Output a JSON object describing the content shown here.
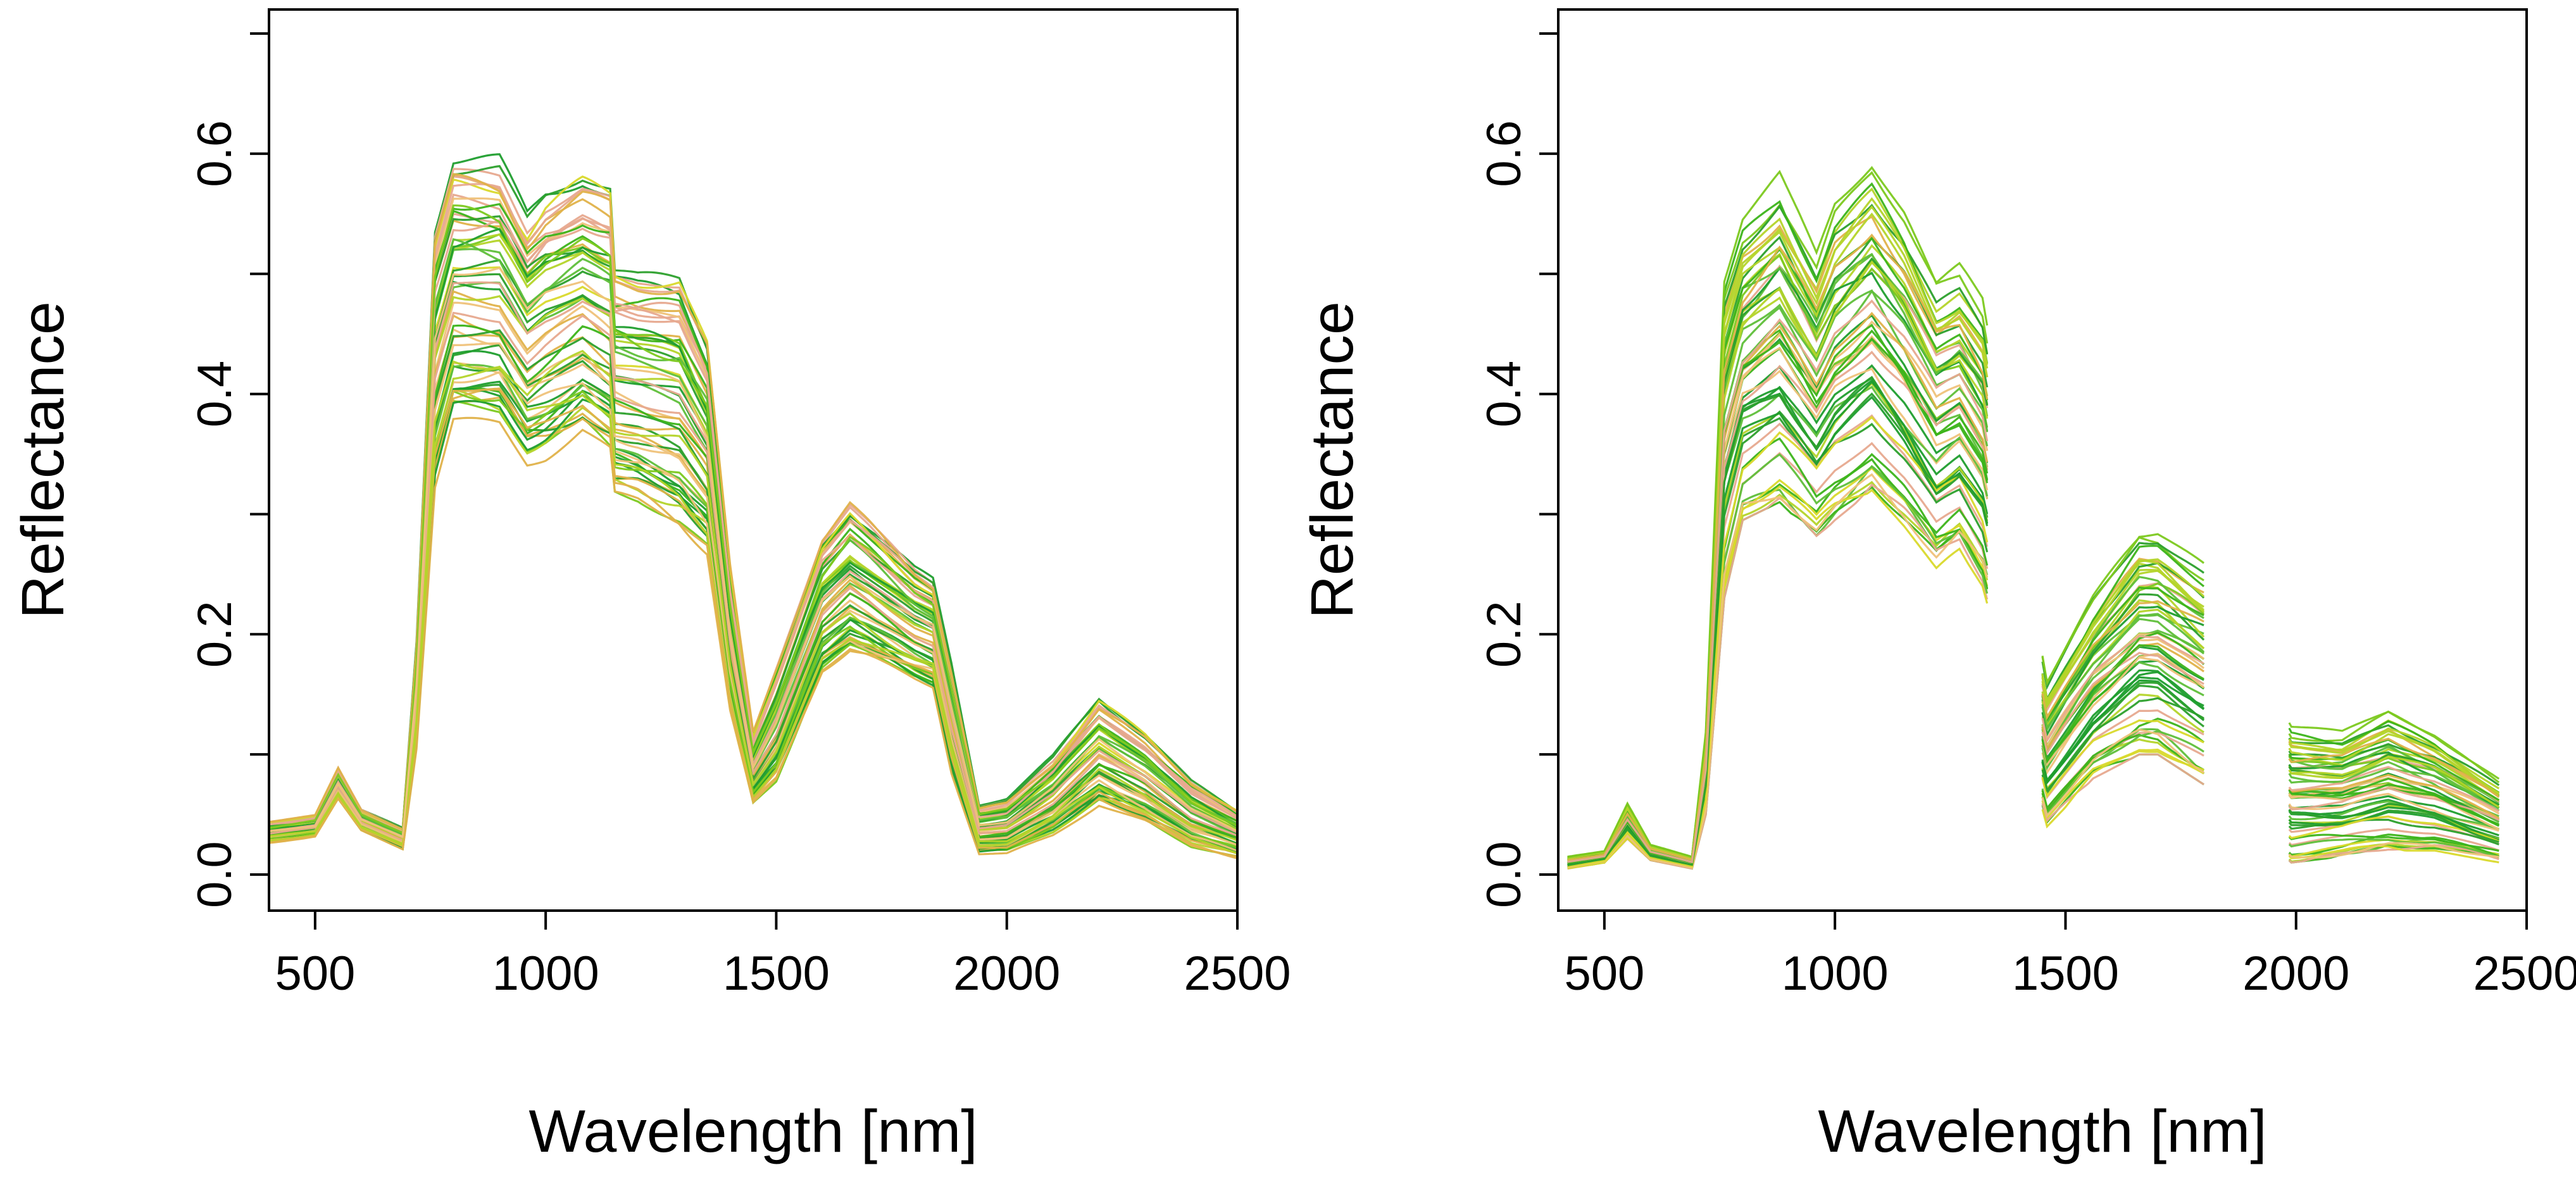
{
  "colors": {
    "series_palette": [
      "#2ca02c",
      "#3cb41a",
      "#7cc91f",
      "#b4d42a",
      "#d9d92c",
      "#e0b24a",
      "#e7a98f",
      "#efc27a",
      "#5fbf3a",
      "#1f9e2e"
    ],
    "axis": "#000000",
    "background": "#ffffff"
  },
  "chart_data": [
    {
      "type": "line",
      "title": "",
      "xlabel": "Wavelength [nm]",
      "ylabel": "Reflectance",
      "xlim": [
        400,
        2500
      ],
      "ylim": [
        -0.03,
        0.72
      ],
      "xticks": [
        500,
        1000,
        1500,
        2000,
        2500
      ],
      "xtick_labels": [
        "500",
        "1000",
        "1500",
        "2000",
        "2500"
      ],
      "yticks": [
        0.0,
        0.1,
        0.2,
        0.3,
        0.4,
        0.5,
        0.6,
        0.7
      ],
      "ytick_labels": [
        "0.0",
        "",
        "0.2",
        "",
        "0.4",
        "",
        "0.6",
        ""
      ],
      "grid": false,
      "legend": "none",
      "series_count": 60,
      "envelope": {
        "x": [
          400,
          500,
          550,
          600,
          690,
          720,
          760,
          800,
          900,
          960,
          1000,
          1080,
          1140,
          1150,
          1200,
          1290,
          1350,
          1400,
          1450,
          1500,
          1600,
          1660,
          1700,
          1800,
          1840,
          1880,
          1940,
          2000,
          2100,
          2200,
          2300,
          2400,
          2500
        ],
        "low": [
          0.025,
          0.03,
          0.06,
          0.035,
          0.02,
          0.1,
          0.31,
          0.365,
          0.365,
          0.335,
          0.34,
          0.36,
          0.34,
          0.305,
          0.3,
          0.28,
          0.26,
          0.13,
          0.055,
          0.07,
          0.16,
          0.175,
          0.17,
          0.155,
          0.15,
          0.08,
          0.015,
          0.015,
          0.03,
          0.055,
          0.04,
          0.02,
          0.012
        ],
        "high": [
          0.045,
          0.05,
          0.09,
          0.055,
          0.04,
          0.2,
          0.55,
          0.605,
          0.6,
          0.555,
          0.575,
          0.59,
          0.58,
          0.51,
          0.505,
          0.505,
          0.45,
          0.26,
          0.12,
          0.175,
          0.285,
          0.315,
          0.3,
          0.26,
          0.25,
          0.18,
          0.06,
          0.065,
          0.1,
          0.15,
          0.12,
          0.08,
          0.055
        ]
      },
      "gaps": []
    },
    {
      "type": "line",
      "title": "",
      "xlabel": "Wavelength [nm]",
      "ylabel": "Reflectance",
      "xlim": [
        400,
        2500
      ],
      "ylim": [
        -0.03,
        0.72
      ],
      "xticks": [
        500,
        1000,
        1500,
        2000,
        2500
      ],
      "xtick_labels": [
        "500",
        "1000",
        "1500",
        "2000",
        "2500"
      ],
      "yticks": [
        0.0,
        0.1,
        0.2,
        0.3,
        0.4,
        0.5,
        0.6,
        0.7
      ],
      "ytick_labels": [
        "0.0",
        "",
        "0.2",
        "",
        "0.4",
        "",
        "0.6",
        ""
      ],
      "grid": false,
      "legend": "none",
      "series_count": 60,
      "envelope": {
        "x": [
          420,
          500,
          550,
          600,
          690,
          720,
          760,
          800,
          880,
          960,
          1000,
          1080,
          1150,
          1220,
          1270,
          1320,
          1460,
          1560,
          1660,
          1700,
          1800,
          1990,
          2100,
          2200,
          2300,
          2440
        ],
        "low": [
          0.005,
          0.01,
          0.03,
          0.012,
          0.005,
          0.05,
          0.23,
          0.295,
          0.31,
          0.28,
          0.295,
          0.32,
          0.29,
          0.255,
          0.27,
          0.24,
          0.04,
          0.08,
          0.1,
          0.1,
          0.075,
          0.01,
          0.015,
          0.02,
          0.02,
          0.01
        ],
        "high": [
          0.015,
          0.02,
          0.06,
          0.025,
          0.015,
          0.12,
          0.5,
          0.55,
          0.585,
          0.52,
          0.565,
          0.6,
          0.56,
          0.5,
          0.51,
          0.48,
          0.165,
          0.235,
          0.29,
          0.29,
          0.26,
          0.125,
          0.12,
          0.14,
          0.12,
          0.08
        ]
      },
      "gaps": [
        [
          1330,
          1450
        ],
        [
          1800,
          1985
        ]
      ]
    }
  ]
}
